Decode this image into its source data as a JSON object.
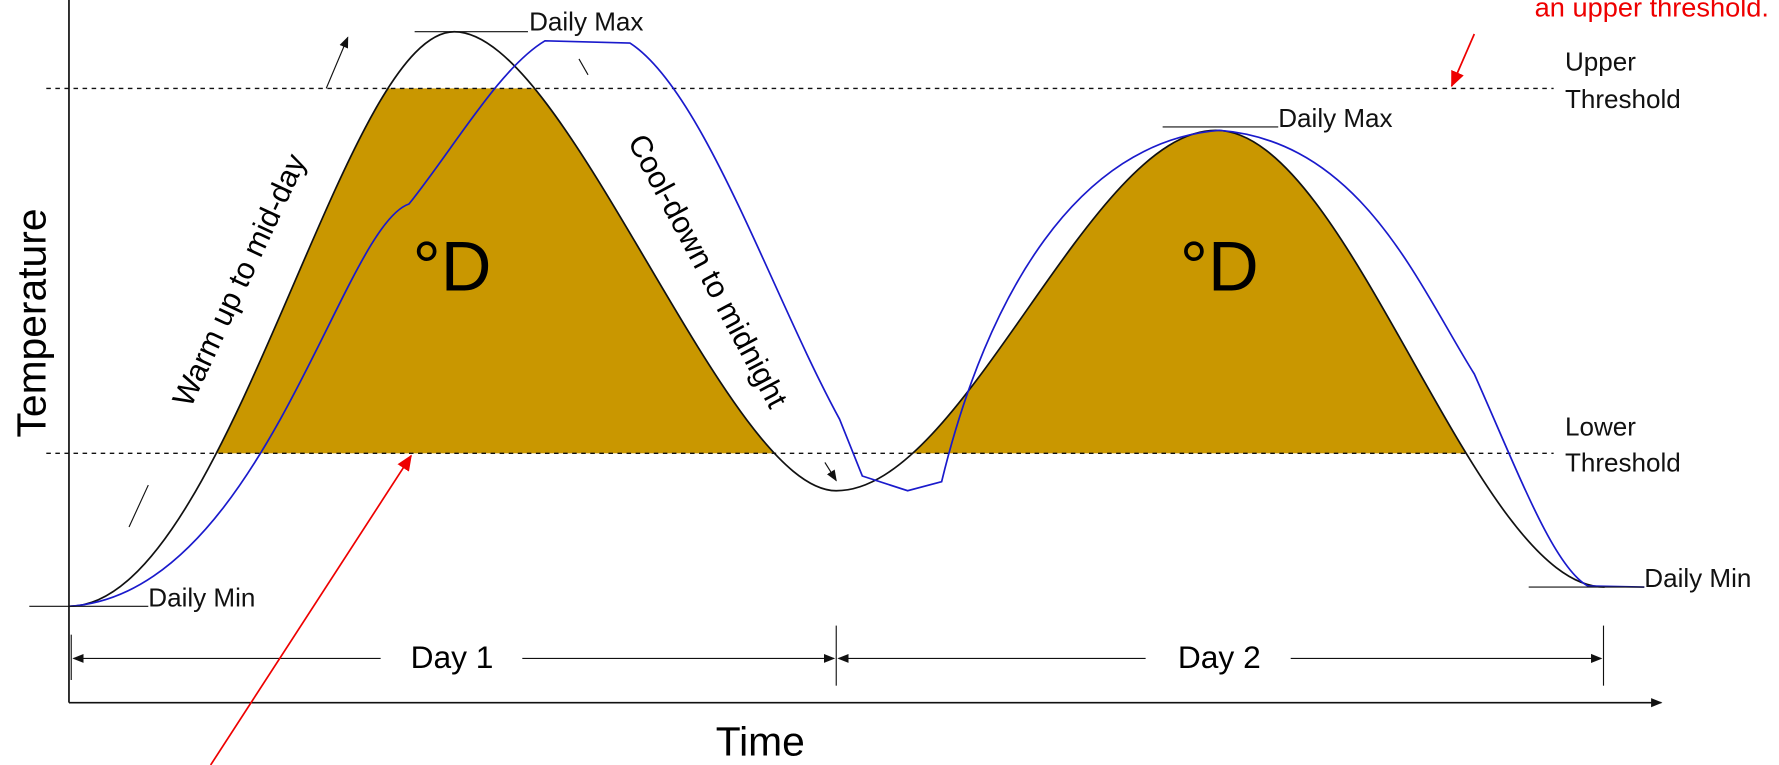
{
  "top_note": "an upper threshold.",
  "axes": {
    "y_label": "Temperature",
    "x_label": "Time"
  },
  "thresholds": {
    "upper": [
      "Upper",
      "Threshold"
    ],
    "lower": [
      "Lower",
      "Threshold"
    ]
  },
  "peaks": [
    "Daily Max",
    "Daily Max"
  ],
  "troughs": [
    "Daily Min",
    "Daily Min"
  ],
  "phases": {
    "warm": "Warm up to mid-day",
    "cool": "Cool-down to midnight"
  },
  "degree_days": [
    "°D",
    "°D"
  ],
  "days": [
    "Day 1",
    "Day 2"
  ]
}
